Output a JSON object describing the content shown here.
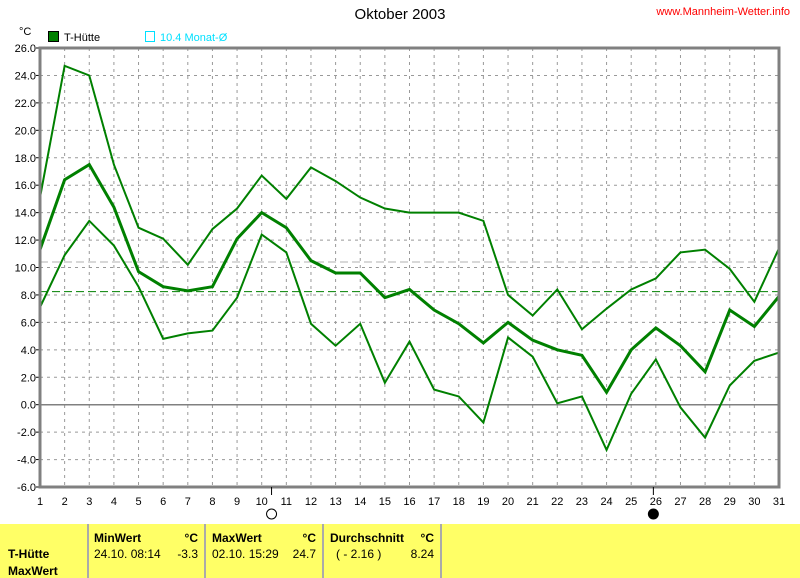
{
  "header": {
    "title": "Oktober 2003",
    "url": "www.Mannheim-Wetter.info"
  },
  "legend": {
    "series": "T-Hütte",
    "series_color": "#008000",
    "avg_label": "10.4 Monat-Ø",
    "avg_color": "#00e0ff"
  },
  "chart_data": {
    "type": "line",
    "title": "Oktober 2003",
    "ylabel": "°C",
    "ylim": [
      -6,
      26
    ],
    "yticks": [
      "-6.0",
      "-4.0",
      "-2.0",
      "0.0",
      "2.0",
      "4.0",
      "6.0",
      "8.0",
      "10.0",
      "12.0",
      "14.0",
      "16.0",
      "18.0",
      "20.0",
      "22.0",
      "24.0",
      "26.0"
    ],
    "x": [
      1,
      2,
      3,
      4,
      5,
      6,
      7,
      8,
      9,
      10,
      11,
      12,
      13,
      14,
      15,
      16,
      17,
      18,
      19,
      20,
      21,
      22,
      23,
      24,
      25,
      26,
      27,
      28,
      29,
      30,
      31
    ],
    "grid": true,
    "series": [
      {
        "role": "max",
        "color": "#008000",
        "values": [
          15.1,
          24.7,
          24.0,
          17.5,
          12.9,
          12.1,
          10.2,
          12.8,
          14.3,
          16.7,
          15.0,
          17.3,
          16.3,
          15.1,
          14.3,
          14.0,
          14.0,
          14.0,
          13.4,
          8.0,
          6.5,
          8.4,
          5.5,
          7.0,
          8.4,
          9.2,
          11.1,
          11.3,
          9.9,
          7.5,
          11.4
        ]
      },
      {
        "role": "mean",
        "color": "#008000",
        "values": [
          11.3,
          16.4,
          17.5,
          14.4,
          9.7,
          8.6,
          8.3,
          8.6,
          12.1,
          14.0,
          12.9,
          10.5,
          9.6,
          9.6,
          7.8,
          8.4,
          6.9,
          5.9,
          4.5,
          6.0,
          4.7,
          4.0,
          3.6,
          0.9,
          4.0,
          5.6,
          4.3,
          2.4,
          6.9,
          5.7,
          7.9
        ]
      },
      {
        "role": "min",
        "color": "#008000",
        "values": [
          7.1,
          10.9,
          13.4,
          11.6,
          8.6,
          4.8,
          5.2,
          5.4,
          7.8,
          12.4,
          11.1,
          5.9,
          4.3,
          5.9,
          1.6,
          4.6,
          1.1,
          0.6,
          -1.3,
          4.9,
          3.5,
          0.1,
          0.6,
          -3.3,
          0.8,
          3.3,
          -0.2,
          -2.4,
          1.4,
          3.2,
          3.8
        ]
      }
    ],
    "reference_lines": [
      {
        "value": 10.4,
        "color": "#b0b0b0"
      },
      {
        "value": 8.24,
        "color": "#008000"
      }
    ],
    "moon_phases": [
      {
        "day": 10.4,
        "phase": "full"
      },
      {
        "day": 25.9,
        "phase": "new"
      }
    ]
  },
  "table": {
    "row_label_1": "T-Hütte",
    "row_label_2": "MaxWert",
    "min": {
      "label": "MinWert",
      "unit": "°C",
      "date": "24.10.  08:14",
      "value": "-3.3"
    },
    "max": {
      "label": "MaxWert",
      "unit": "°C",
      "date": "02.10.  15:29",
      "value": "24.7"
    },
    "avg": {
      "label": "Durchschnitt",
      "unit": "°C",
      "diff": "( - 2.16 )",
      "value": "8.24"
    }
  }
}
